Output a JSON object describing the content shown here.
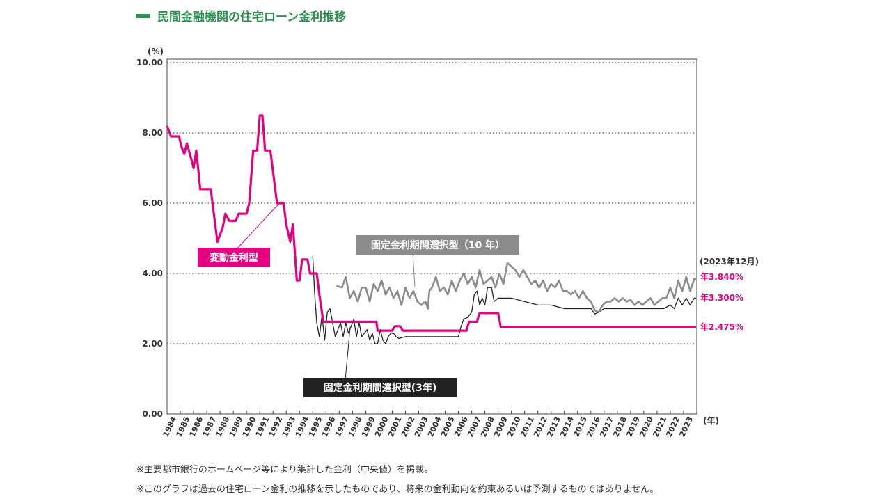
{
  "title": "民間金融機関の住宅ローン金利推移",
  "notes": [
    "※主要都市銀行のホームページ等により集計した金利（中央値）を掲載。",
    "※このグラフは過去の住宅ローン金利の推移を示したものであり、将来の金利動向を約束あるいは予測するものではありません。"
  ],
  "colors": {
    "title_green": "#2f8c53",
    "variable": "#e4007f",
    "fixed10": "#8c8c8c",
    "fixed3": "#222222"
  },
  "chart_data": {
    "type": "line",
    "y_unit": "(%)",
    "x_unit": "(年)",
    "ylim": [
      0,
      10
    ],
    "yticks": [
      "0.00",
      "2.00",
      "4.00",
      "6.00",
      "8.00",
      "10.00"
    ],
    "xticks": [
      "1984",
      "1985",
      "1986",
      "1987",
      "1988",
      "1989",
      "1990",
      "1991",
      "1992",
      "1993",
      "1994",
      "1995",
      "1996",
      "1997",
      "1998",
      "1999",
      "2000",
      "2001",
      "2002",
      "2003",
      "2004",
      "2005",
      "2006",
      "2007",
      "2008",
      "2009",
      "2010",
      "2011",
      "2012",
      "2013",
      "2014",
      "2015",
      "2016",
      "2017",
      "2018",
      "2019",
      "2020",
      "2021",
      "2022",
      "2023"
    ],
    "grid": "horizontal-dotted",
    "end_date_label": "(2023年12月)",
    "series": [
      {
        "name": "変動金利型",
        "label": "変動金利型",
        "end_label": "年2.475%",
        "color": "#e4007f",
        "points": [
          [
            1984.0,
            8.2
          ],
          [
            1984.3,
            7.9
          ],
          [
            1984.9,
            7.9
          ],
          [
            1985.1,
            7.6
          ],
          [
            1985.3,
            7.4
          ],
          [
            1985.5,
            7.7
          ],
          [
            1985.8,
            7.3
          ],
          [
            1986.0,
            7.0
          ],
          [
            1986.2,
            7.5
          ],
          [
            1986.4,
            6.8
          ],
          [
            1986.5,
            6.4
          ],
          [
            1987.3,
            6.4
          ],
          [
            1987.5,
            5.8
          ],
          [
            1987.8,
            4.9
          ],
          [
            1988.2,
            5.3
          ],
          [
            1988.4,
            5.7
          ],
          [
            1988.7,
            5.5
          ],
          [
            1989.2,
            5.5
          ],
          [
            1989.4,
            5.7
          ],
          [
            1990.0,
            5.7
          ],
          [
            1990.2,
            6.0
          ],
          [
            1990.5,
            7.5
          ],
          [
            1990.8,
            7.5
          ],
          [
            1991.0,
            8.5
          ],
          [
            1991.2,
            8.5
          ],
          [
            1991.4,
            7.5
          ],
          [
            1991.8,
            7.5
          ],
          [
            1992.0,
            6.9
          ],
          [
            1992.3,
            6.0
          ],
          [
            1992.8,
            6.0
          ],
          [
            1993.0,
            5.4
          ],
          [
            1993.3,
            4.9
          ],
          [
            1993.5,
            5.4
          ],
          [
            1993.8,
            3.8
          ],
          [
            1994.0,
            3.8
          ],
          [
            1994.2,
            4.4
          ],
          [
            1994.6,
            4.4
          ],
          [
            1994.8,
            4.0
          ],
          [
            1995.3,
            4.0
          ],
          [
            1995.5,
            3.4
          ],
          [
            1995.8,
            2.625
          ],
          [
            1999.8,
            2.625
          ],
          [
            1999.9,
            2.375
          ],
          [
            2001.0,
            2.375
          ],
          [
            2001.2,
            2.5
          ],
          [
            2001.6,
            2.5
          ],
          [
            2001.8,
            2.375
          ],
          [
            2006.6,
            2.375
          ],
          [
            2006.8,
            2.625
          ],
          [
            2007.4,
            2.625
          ],
          [
            2007.6,
            2.875
          ],
          [
            2009.0,
            2.875
          ],
          [
            2009.2,
            2.475
          ],
          [
            2023.95,
            2.475
          ]
        ]
      },
      {
        "name": "固定金利期間選択型（10年）",
        "label": "固定金利期間選択型（10 年）",
        "end_label": "年3.840%",
        "color": "#8c8c8c",
        "points": [
          [
            1996.8,
            3.65
          ],
          [
            1997.2,
            3.6
          ],
          [
            1997.5,
            3.9
          ],
          [
            1997.8,
            3.3
          ],
          [
            1998.1,
            3.5
          ],
          [
            1998.4,
            3.2
          ],
          [
            1998.7,
            3.6
          ],
          [
            1999.0,
            3.6
          ],
          [
            1999.3,
            3.2
          ],
          [
            1999.6,
            3.7
          ],
          [
            1999.9,
            3.5
          ],
          [
            2000.2,
            3.8
          ],
          [
            2000.5,
            3.4
          ],
          [
            2000.8,
            3.6
          ],
          [
            2001.1,
            3.3
          ],
          [
            2001.4,
            3.5
          ],
          [
            2001.7,
            3.1
          ],
          [
            2002.0,
            3.6
          ],
          [
            2002.3,
            3.3
          ],
          [
            2002.6,
            3.5
          ],
          [
            2002.9,
            3.2
          ],
          [
            2003.2,
            3.1
          ],
          [
            2003.5,
            3.2
          ],
          [
            2003.7,
            3.0
          ],
          [
            2003.8,
            3.5
          ],
          [
            2004.0,
            3.6
          ],
          [
            2004.3,
            3.9
          ],
          [
            2004.6,
            3.5
          ],
          [
            2004.9,
            3.6
          ],
          [
            2005.2,
            3.4
          ],
          [
            2005.5,
            3.8
          ],
          [
            2005.8,
            3.5
          ],
          [
            2006.1,
            3.8
          ],
          [
            2006.4,
            4.0
          ],
          [
            2006.7,
            3.7
          ],
          [
            2007.0,
            3.9
          ],
          [
            2007.3,
            3.6
          ],
          [
            2007.6,
            4.1
          ],
          [
            2007.9,
            3.7
          ],
          [
            2008.2,
            3.8
          ],
          [
            2008.5,
            3.9
          ],
          [
            2008.8,
            3.6
          ],
          [
            2009.1,
            4.0
          ],
          [
            2009.4,
            3.7
          ],
          [
            2009.7,
            4.3
          ],
          [
            2010.0,
            4.2
          ],
          [
            2010.3,
            4.1
          ],
          [
            2010.6,
            3.9
          ],
          [
            2010.9,
            4.1
          ],
          [
            2011.2,
            3.9
          ],
          [
            2011.5,
            3.7
          ],
          [
            2011.8,
            3.8
          ],
          [
            2012.1,
            3.6
          ],
          [
            2012.4,
            3.8
          ],
          [
            2012.7,
            3.5
          ],
          [
            2013.0,
            3.7
          ],
          [
            2013.3,
            3.6
          ],
          [
            2013.6,
            3.8
          ],
          [
            2013.9,
            3.5
          ],
          [
            2014.2,
            3.5
          ],
          [
            2014.5,
            3.4
          ],
          [
            2014.8,
            3.5
          ],
          [
            2015.1,
            3.3
          ],
          [
            2015.4,
            3.5
          ],
          [
            2015.7,
            3.3
          ],
          [
            2016.0,
            3.2
          ],
          [
            2016.3,
            2.95
          ],
          [
            2016.6,
            2.9
          ],
          [
            2016.9,
            3.1
          ],
          [
            2017.2,
            3.2
          ],
          [
            2017.5,
            3.2
          ],
          [
            2017.8,
            3.3
          ],
          [
            2018.1,
            3.2
          ],
          [
            2018.4,
            3.3
          ],
          [
            2018.7,
            3.2
          ],
          [
            2019.0,
            3.25
          ],
          [
            2019.3,
            3.1
          ],
          [
            2019.6,
            3.2
          ],
          [
            2019.9,
            3.1
          ],
          [
            2020.2,
            3.2
          ],
          [
            2020.5,
            3.3
          ],
          [
            2020.8,
            3.1
          ],
          [
            2021.1,
            3.2
          ],
          [
            2021.4,
            3.3
          ],
          [
            2021.7,
            3.3
          ],
          [
            2022.0,
            3.6
          ],
          [
            2022.3,
            3.3
          ],
          [
            2022.6,
            3.8
          ],
          [
            2022.9,
            3.5
          ],
          [
            2023.2,
            3.9
          ],
          [
            2023.5,
            3.5
          ],
          [
            2023.8,
            3.84
          ],
          [
            2023.95,
            3.84
          ]
        ]
      },
      {
        "name": "固定金利期間選択型（3年）",
        "label": "固定金利期間選択型(3年)",
        "end_label": "年3.300%",
        "color": "#222222",
        "points": [
          [
            1995.0,
            4.5
          ],
          [
            1995.15,
            3.4
          ],
          [
            1995.3,
            2.6
          ],
          [
            1995.5,
            2.2
          ],
          [
            1995.7,
            2.8
          ],
          [
            1995.9,
            2.1
          ],
          [
            1996.1,
            2.9
          ],
          [
            1996.3,
            3.0
          ],
          [
            1996.5,
            2.6
          ],
          [
            1996.7,
            2.2
          ],
          [
            1996.9,
            2.4
          ],
          [
            1997.1,
            2.6
          ],
          [
            1997.3,
            2.2
          ],
          [
            1997.5,
            2.6
          ],
          [
            1997.7,
            2.3
          ],
          [
            1997.9,
            2.5
          ],
          [
            1998.1,
            2.7
          ],
          [
            1998.3,
            2.2
          ],
          [
            1998.5,
            2.6
          ],
          [
            1998.7,
            2.2
          ],
          [
            1998.9,
            2.3
          ],
          [
            1999.1,
            2.4
          ],
          [
            1999.3,
            2.1
          ],
          [
            1999.5,
            2.3
          ],
          [
            1999.7,
            2.0
          ],
          [
            1999.9,
            2.0
          ],
          [
            2000.1,
            2.4
          ],
          [
            2000.3,
            2.1
          ],
          [
            2000.5,
            2.0
          ],
          [
            2000.7,
            2.2
          ],
          [
            2000.9,
            2.3
          ],
          [
            2001.1,
            2.3
          ],
          [
            2001.3,
            2.2
          ],
          [
            2001.5,
            2.15
          ],
          [
            2002.0,
            2.2
          ],
          [
            2006.0,
            2.2
          ],
          [
            2006.2,
            2.5
          ],
          [
            2006.4,
            2.7
          ],
          [
            2006.7,
            2.75
          ],
          [
            2007.0,
            2.9
          ],
          [
            2007.2,
            3.4
          ],
          [
            2007.4,
            3.5
          ],
          [
            2007.6,
            3.1
          ],
          [
            2007.8,
            3.3
          ],
          [
            2008.0,
            3.1
          ],
          [
            2008.2,
            3.6
          ],
          [
            2008.5,
            3.6
          ],
          [
            2008.7,
            3.2
          ],
          [
            2009.0,
            3.3
          ],
          [
            2009.5,
            3.3
          ],
          [
            2010.0,
            3.3
          ],
          [
            2011.0,
            3.2
          ],
          [
            2012.0,
            3.1
          ],
          [
            2013.0,
            3.1
          ],
          [
            2014.0,
            3.0
          ],
          [
            2016.0,
            3.0
          ],
          [
            2016.3,
            2.85
          ],
          [
            2016.6,
            2.9
          ],
          [
            2017.0,
            3.0
          ],
          [
            2018.0,
            3.0
          ],
          [
            2019.0,
            3.0
          ],
          [
            2020.0,
            3.0
          ],
          [
            2021.0,
            3.0
          ],
          [
            2021.5,
            3.0
          ],
          [
            2022.0,
            3.1
          ],
          [
            2022.3,
            3.0
          ],
          [
            2022.6,
            3.3
          ],
          [
            2022.9,
            3.1
          ],
          [
            2023.2,
            3.3
          ],
          [
            2023.5,
            3.1
          ],
          [
            2023.8,
            3.3
          ],
          [
            2023.95,
            3.3
          ]
        ]
      }
    ]
  }
}
